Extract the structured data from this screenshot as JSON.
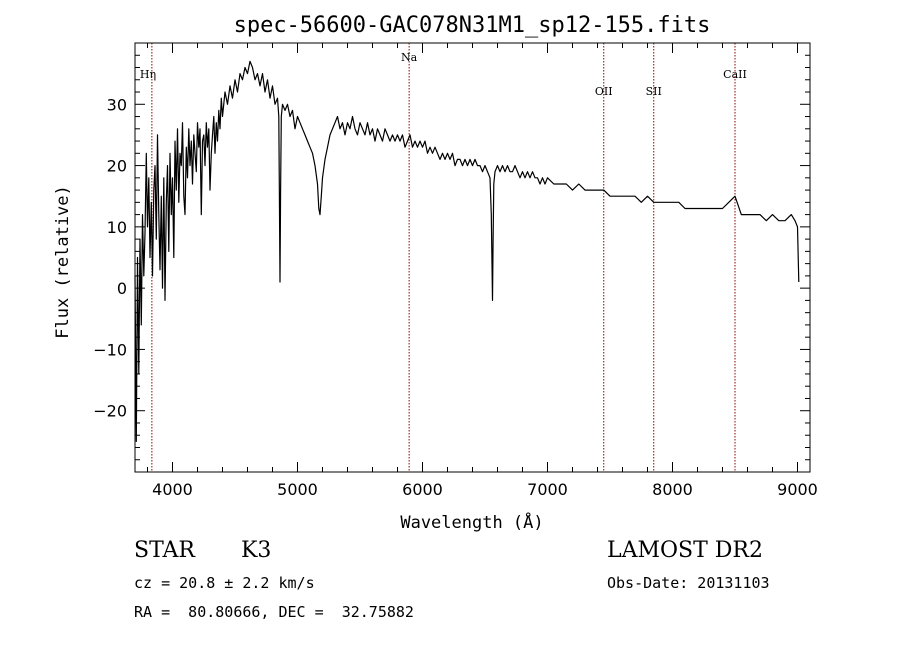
{
  "chart_data": {
    "type": "line",
    "title": "spec-56600-GAC078N31M1_sp12-155.fits",
    "xlabel": "Wavelength (Å)",
    "ylabel": "Flux (relative)",
    "xlim": [
      3700,
      9100
    ],
    "ylim": [
      -30,
      40
    ],
    "xticks": [
      4000,
      5000,
      6000,
      7000,
      8000,
      9000
    ],
    "yticks": [
      -20,
      -10,
      0,
      10,
      20,
      30
    ],
    "series": [
      {
        "points": [
          [
            3700,
            2
          ],
          [
            3710,
            -25
          ],
          [
            3720,
            5
          ],
          [
            3730,
            -14
          ],
          [
            3740,
            8
          ],
          [
            3750,
            -6
          ],
          [
            3760,
            12
          ],
          [
            3770,
            2
          ],
          [
            3780,
            9
          ],
          [
            3790,
            22
          ],
          [
            3800,
            10
          ],
          [
            3810,
            18
          ],
          [
            3820,
            5
          ],
          [
            3830,
            14
          ],
          [
            3840,
            2
          ],
          [
            3850,
            16
          ],
          [
            3860,
            20
          ],
          [
            3870,
            8
          ],
          [
            3880,
            25
          ],
          [
            3890,
            12
          ],
          [
            3900,
            3
          ],
          [
            3910,
            15
          ],
          [
            3920,
            0
          ],
          [
            3930,
            18
          ],
          [
            3940,
            -2
          ],
          [
            3950,
            14
          ],
          [
            3960,
            20
          ],
          [
            3970,
            6
          ],
          [
            3980,
            22
          ],
          [
            3990,
            12
          ],
          [
            4000,
            18
          ],
          [
            4010,
            5
          ],
          [
            4020,
            24
          ],
          [
            4030,
            16
          ],
          [
            4040,
            26
          ],
          [
            4050,
            14
          ],
          [
            4060,
            22
          ],
          [
            4070,
            20
          ],
          [
            4080,
            27
          ],
          [
            4090,
            15
          ],
          [
            4100,
            12
          ],
          [
            4110,
            23
          ],
          [
            4120,
            18
          ],
          [
            4130,
            26
          ],
          [
            4140,
            20
          ],
          [
            4150,
            24
          ],
          [
            4160,
            17
          ],
          [
            4170,
            25
          ],
          [
            4180,
            22
          ],
          [
            4190,
            19
          ],
          [
            4200,
            27
          ],
          [
            4210,
            23
          ],
          [
            4220,
            26
          ],
          [
            4230,
            12
          ],
          [
            4240,
            24
          ],
          [
            4250,
            25
          ],
          [
            4260,
            20
          ],
          [
            4270,
            27
          ],
          [
            4280,
            23
          ],
          [
            4290,
            26
          ],
          [
            4300,
            16
          ],
          [
            4310,
            22
          ],
          [
            4320,
            25
          ],
          [
            4330,
            28
          ],
          [
            4340,
            22
          ],
          [
            4350,
            27
          ],
          [
            4360,
            24
          ],
          [
            4370,
            29
          ],
          [
            4380,
            26
          ],
          [
            4390,
            31
          ],
          [
            4400,
            28
          ],
          [
            4420,
            32
          ],
          [
            4440,
            30
          ],
          [
            4460,
            33
          ],
          [
            4480,
            31
          ],
          [
            4500,
            34
          ],
          [
            4520,
            32
          ],
          [
            4540,
            35
          ],
          [
            4560,
            34
          ],
          [
            4580,
            36
          ],
          [
            4600,
            35
          ],
          [
            4620,
            37
          ],
          [
            4640,
            36
          ],
          [
            4660,
            34
          ],
          [
            4680,
            35
          ],
          [
            4700,
            33
          ],
          [
            4720,
            35
          ],
          [
            4740,
            32
          ],
          [
            4760,
            34
          ],
          [
            4780,
            31
          ],
          [
            4800,
            33
          ],
          [
            4820,
            30
          ],
          [
            4840,
            31
          ],
          [
            4850,
            28
          ],
          [
            4855,
            15
          ],
          [
            4860,
            1
          ],
          [
            4865,
            16
          ],
          [
            4870,
            28
          ],
          [
            4880,
            30
          ],
          [
            4900,
            29
          ],
          [
            4920,
            30
          ],
          [
            4940,
            28
          ],
          [
            4960,
            29
          ],
          [
            4980,
            26
          ],
          [
            5000,
            28
          ],
          [
            5020,
            27
          ],
          [
            5040,
            26
          ],
          [
            5060,
            25
          ],
          [
            5080,
            24
          ],
          [
            5100,
            23
          ],
          [
            5120,
            22
          ],
          [
            5140,
            20
          ],
          [
            5160,
            17
          ],
          [
            5170,
            13
          ],
          [
            5180,
            12
          ],
          [
            5190,
            15
          ],
          [
            5200,
            18
          ],
          [
            5220,
            21
          ],
          [
            5240,
            23
          ],
          [
            5260,
            25
          ],
          [
            5280,
            26
          ],
          [
            5300,
            27
          ],
          [
            5320,
            28
          ],
          [
            5340,
            26
          ],
          [
            5360,
            27
          ],
          [
            5380,
            25
          ],
          [
            5400,
            27
          ],
          [
            5420,
            26
          ],
          [
            5440,
            28
          ],
          [
            5460,
            26
          ],
          [
            5480,
            25
          ],
          [
            5500,
            27
          ],
          [
            5520,
            26
          ],
          [
            5540,
            25
          ],
          [
            5560,
            27
          ],
          [
            5580,
            25
          ],
          [
            5600,
            26
          ],
          [
            5620,
            24
          ],
          [
            5640,
            26
          ],
          [
            5660,
            25
          ],
          [
            5680,
            24
          ],
          [
            5700,
            26
          ],
          [
            5720,
            25
          ],
          [
            5740,
            24
          ],
          [
            5760,
            25
          ],
          [
            5780,
            24
          ],
          [
            5800,
            25
          ],
          [
            5820,
            24
          ],
          [
            5840,
            25
          ],
          [
            5860,
            23
          ],
          [
            5880,
            24
          ],
          [
            5900,
            25
          ],
          [
            5920,
            23
          ],
          [
            5940,
            24
          ],
          [
            5960,
            23
          ],
          [
            5980,
            24
          ],
          [
            6000,
            23
          ],
          [
            6020,
            24
          ],
          [
            6040,
            22
          ],
          [
            6060,
            23
          ],
          [
            6080,
            22
          ],
          [
            6100,
            23
          ],
          [
            6120,
            22
          ],
          [
            6140,
            21
          ],
          [
            6160,
            22
          ],
          [
            6180,
            21
          ],
          [
            6200,
            22
          ],
          [
            6220,
            21
          ],
          [
            6240,
            22
          ],
          [
            6260,
            20
          ],
          [
            6280,
            21
          ],
          [
            6300,
            21
          ],
          [
            6320,
            20
          ],
          [
            6340,
            21
          ],
          [
            6360,
            20
          ],
          [
            6380,
            21
          ],
          [
            6400,
            20
          ],
          [
            6420,
            21
          ],
          [
            6440,
            20
          ],
          [
            6460,
            20
          ],
          [
            6480,
            19
          ],
          [
            6500,
            20
          ],
          [
            6520,
            19
          ],
          [
            6540,
            18
          ],
          [
            6550,
            12
          ],
          [
            6560,
            -2
          ],
          [
            6565,
            8
          ],
          [
            6570,
            17
          ],
          [
            6580,
            19
          ],
          [
            6600,
            20
          ],
          [
            6620,
            19
          ],
          [
            6640,
            20
          ],
          [
            6660,
            19
          ],
          [
            6680,
            20
          ],
          [
            6700,
            19
          ],
          [
            6720,
            19
          ],
          [
            6740,
            20
          ],
          [
            6760,
            19
          ],
          [
            6780,
            18
          ],
          [
            6800,
            19
          ],
          [
            6820,
            18
          ],
          [
            6840,
            19
          ],
          [
            6860,
            18
          ],
          [
            6880,
            19
          ],
          [
            6900,
            18
          ],
          [
            6920,
            18
          ],
          [
            6940,
            17
          ],
          [
            6960,
            18
          ],
          [
            6980,
            17
          ],
          [
            7000,
            18
          ],
          [
            7050,
            17
          ],
          [
            7100,
            17
          ],
          [
            7150,
            17
          ],
          [
            7200,
            16
          ],
          [
            7250,
            17
          ],
          [
            7300,
            16
          ],
          [
            7350,
            16
          ],
          [
            7400,
            16
          ],
          [
            7450,
            16
          ],
          [
            7500,
            15
          ],
          [
            7550,
            15
          ],
          [
            7600,
            15
          ],
          [
            7650,
            15
          ],
          [
            7700,
            15
          ],
          [
            7750,
            14
          ],
          [
            7800,
            15
          ],
          [
            7850,
            14
          ],
          [
            7900,
            14
          ],
          [
            7950,
            14
          ],
          [
            8000,
            14
          ],
          [
            8050,
            14
          ],
          [
            8100,
            13
          ],
          [
            8150,
            13
          ],
          [
            8200,
            13
          ],
          [
            8250,
            13
          ],
          [
            8300,
            13
          ],
          [
            8350,
            13
          ],
          [
            8400,
            13
          ],
          [
            8450,
            14
          ],
          [
            8500,
            15
          ],
          [
            8550,
            12
          ],
          [
            8600,
            12
          ],
          [
            8650,
            12
          ],
          [
            8700,
            12
          ],
          [
            8750,
            11
          ],
          [
            8800,
            12
          ],
          [
            8850,
            11
          ],
          [
            8900,
            11
          ],
          [
            8950,
            12
          ],
          [
            8980,
            11
          ],
          [
            9000,
            10
          ],
          [
            9010,
            1
          ]
        ]
      }
    ],
    "emission_lines": [
      {
        "label": "Hη",
        "x": 3835
      },
      {
        "label": "Na",
        "x": 5893
      },
      {
        "label": "OII",
        "x": 7450
      },
      {
        "label": "SII",
        "x": 7850
      },
      {
        "label": "CaII",
        "x": 8500
      }
    ],
    "line_color": "#000000",
    "marker_color": "#8b0000"
  },
  "info": {
    "class_label": "STAR",
    "subclass": "K3",
    "survey": "LAMOST DR2",
    "cz_text": "cz = 20.8 ± 2.2 km/s",
    "obs_date_text": "Obs-Date: 20131103",
    "radec_text": "RA =  80.80666, DEC =  32.75882"
  }
}
